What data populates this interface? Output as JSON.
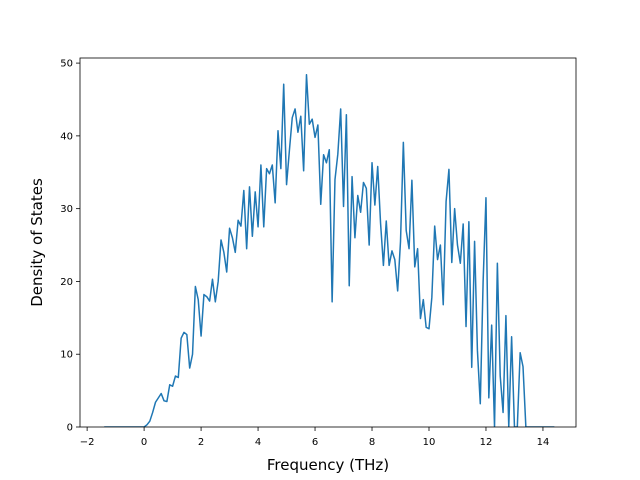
{
  "chart_data": {
    "type": "line",
    "x_label": "Frequency (THz)",
    "y_label": "Density of States",
    "color": "#1f77b4",
    "xlim": [
      -2.25,
      15.16
    ],
    "ylim": [
      0,
      50.7
    ],
    "xticks": [
      {
        "value": -2,
        "label": "−2"
      },
      0,
      2,
      4,
      6,
      8,
      10,
      12,
      14
    ],
    "yticks": [
      0,
      10,
      20,
      30,
      40,
      50
    ],
    "grid": false,
    "x": [
      -1.4,
      0.0,
      0.1,
      0.2,
      0.3,
      0.4,
      0.5,
      0.6,
      0.7,
      0.8,
      0.9,
      1.0,
      1.1,
      1.2,
      1.3,
      1.4,
      1.5,
      1.6,
      1.7,
      1.8,
      1.9,
      2.0,
      2.1,
      2.2,
      2.3,
      2.4,
      2.5,
      2.6,
      2.7,
      2.8,
      2.9,
      3.0,
      3.1,
      3.2,
      3.3,
      3.4,
      3.5,
      3.6,
      3.7,
      3.8,
      3.9,
      4.0,
      4.1,
      4.2,
      4.3,
      4.4,
      4.5,
      4.6,
      4.7,
      4.8,
      4.9,
      5.0,
      5.1,
      5.2,
      5.3,
      5.4,
      5.5,
      5.6,
      5.7,
      5.8,
      5.9,
      6.0,
      6.1,
      6.2,
      6.3,
      6.4,
      6.5,
      6.6,
      6.7,
      6.8,
      6.9,
      7.0,
      7.1,
      7.2,
      7.3,
      7.4,
      7.5,
      7.6,
      7.7,
      7.8,
      7.9,
      8.0,
      8.1,
      8.2,
      8.3,
      8.4,
      8.5,
      8.6,
      8.7,
      8.8,
      8.9,
      9.0,
      9.1,
      9.2,
      9.3,
      9.4,
      9.5,
      9.6,
      9.7,
      9.8,
      9.9,
      10.0,
      10.1,
      10.2,
      10.3,
      10.4,
      10.5,
      10.6,
      10.7,
      10.8,
      10.9,
      11.0,
      11.1,
      11.2,
      11.3,
      11.4,
      11.5,
      11.6,
      11.7,
      11.8,
      11.9,
      12.0,
      12.1,
      12.2,
      12.3,
      12.4,
      12.5,
      12.6,
      12.7,
      12.8,
      12.9,
      13.0,
      13.1,
      13.2,
      13.3,
      13.4,
      14.4
    ],
    "values": [
      0,
      0,
      0.3,
      0.8,
      2.0,
      3.4,
      4.0,
      4.6,
      3.6,
      3.5,
      5.8,
      5.6,
      7.0,
      6.8,
      12.2,
      13.0,
      12.7,
      8.1,
      10.0,
      19.3,
      17.5,
      12.5,
      18.2,
      17.9,
      17.3,
      20.3,
      17.2,
      20.0,
      25.7,
      24.0,
      21.3,
      27.3,
      26.0,
      24.0,
      28.4,
      27.6,
      32.5,
      24.5,
      33.0,
      26.2,
      32.3,
      27.5,
      36.0,
      27.5,
      35.5,
      34.8,
      36.0,
      30.8,
      40.7,
      35.5,
      47.1,
      33.3,
      38.0,
      42.5,
      43.7,
      40.5,
      42.7,
      35.2,
      48.4,
      41.6,
      42.3,
      39.8,
      41.5,
      30.6,
      37.4,
      36.3,
      38.1,
      17.2,
      34.0,
      37.5,
      43.7,
      30.3,
      42.9,
      19.4,
      34.4,
      26.0,
      31.8,
      29.5,
      33.6,
      32.8,
      25.0,
      36.3,
      30.5,
      35.8,
      28.0,
      22.2,
      28.3,
      22.2,
      24.2,
      23.0,
      18.7,
      25.5,
      39.1,
      27.0,
      24.5,
      33.9,
      22.0,
      24.5,
      14.9,
      17.5,
      13.7,
      13.5,
      17.8,
      27.6,
      23.0,
      25.0,
      16.8,
      31.0,
      35.4,
      22.6,
      30.0,
      25.0,
      22.5,
      27.9,
      13.8,
      28.2,
      8.2,
      25.5,
      10.5,
      3.2,
      20.0,
      31.5,
      4.0,
      14.0,
      0,
      22.5,
      7.0,
      2.0,
      15.3,
      0,
      12.4,
      0,
      0,
      10.2,
      8.3,
      0,
      0
    ]
  }
}
